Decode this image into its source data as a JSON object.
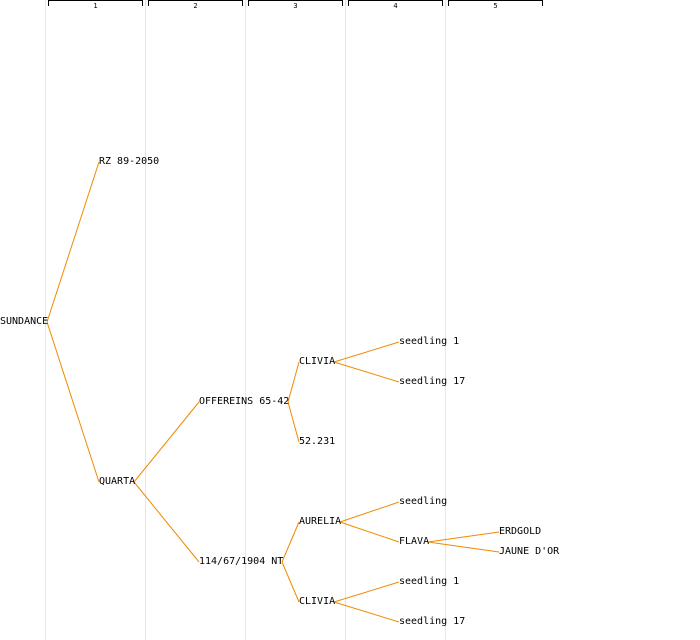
{
  "columns": [
    "1",
    "2",
    "3",
    "4",
    "5"
  ],
  "colors": {
    "edge": "#f08a00",
    "column_band": "#e6e6e6",
    "text": "#000000"
  },
  "nodes": {
    "sundance": "SUNDANCE",
    "rz89": "RZ 89-2050",
    "quarta": "QUARTA",
    "offereins": "OFFEREINS 65-42",
    "n114": "114/67/1904 NT",
    "clivia_a": "CLIVIA",
    "n52231": "52.231",
    "aurelia": "AURELIA",
    "clivia_b": "CLIVIA",
    "seedling1_a": "seedling 1",
    "seedling17_a": "seedling 17",
    "seedling": "seedling",
    "flava": "FLAVA",
    "seedling1_b": "seedling 1",
    "seedling17_b": "seedling 17",
    "erdgold": "ERDGOLD",
    "jaune": "JAUNE D'OR"
  },
  "edges": [
    [
      "sundance",
      "rz89"
    ],
    [
      "sundance",
      "quarta"
    ],
    [
      "quarta",
      "offereins"
    ],
    [
      "quarta",
      "n114"
    ],
    [
      "offereins",
      "clivia_a"
    ],
    [
      "offereins",
      "n52231"
    ],
    [
      "n114",
      "aurelia"
    ],
    [
      "n114",
      "clivia_b"
    ],
    [
      "clivia_a",
      "seedling1_a"
    ],
    [
      "clivia_a",
      "seedling17_a"
    ],
    [
      "aurelia",
      "seedling"
    ],
    [
      "aurelia",
      "flava"
    ],
    [
      "clivia_b",
      "seedling1_b"
    ],
    [
      "clivia_b",
      "seedling17_b"
    ],
    [
      "flava",
      "erdgold"
    ],
    [
      "flava",
      "jaune"
    ]
  ]
}
